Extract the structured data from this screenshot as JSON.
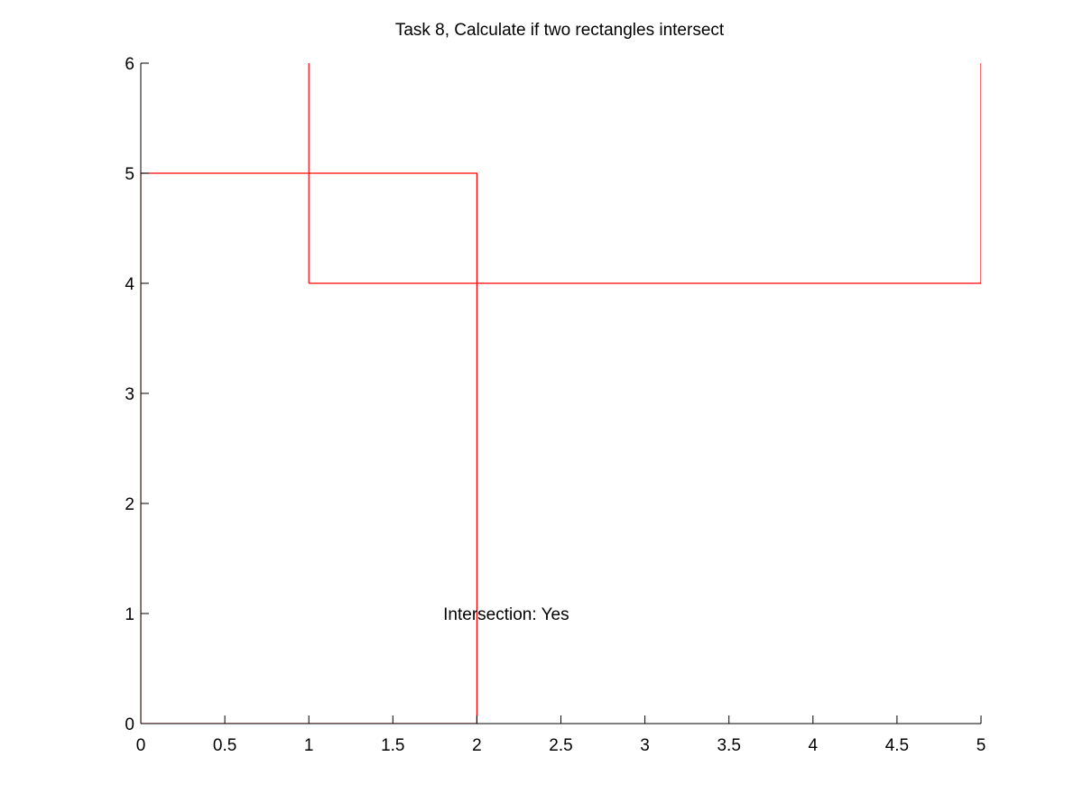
{
  "chart_data": {
    "type": "line",
    "title": "Task 8, Calculate if two rectangles intersect",
    "xlabel": "",
    "ylabel": "",
    "xlim": [
      0,
      5
    ],
    "ylim": [
      0,
      6
    ],
    "x_ticks": [
      0,
      0.5,
      1,
      1.5,
      2,
      2.5,
      3,
      3.5,
      4,
      4.5,
      5
    ],
    "x_tick_labels": [
      "0",
      "0.5",
      "1",
      "1.5",
      "2",
      "2.5",
      "3",
      "3.5",
      "4",
      "4.5",
      "5"
    ],
    "y_ticks": [
      0,
      1,
      2,
      3,
      4,
      5,
      6
    ],
    "y_tick_labels": [
      "0",
      "1",
      "2",
      "3",
      "4",
      "5",
      "6"
    ],
    "grid": false,
    "legend": "none",
    "series": [
      {
        "color": "#ff0000",
        "x": [
          0,
          2,
          2,
          0,
          0
        ],
        "y": [
          0,
          0,
          5,
          5,
          0
        ]
      },
      {
        "color": "#ff0000",
        "x": [
          1,
          5,
          5,
          1,
          1
        ],
        "y": [
          4,
          4,
          8,
          8,
          4
        ]
      }
    ],
    "annotations": [
      {
        "text": "Intersection: Yes",
        "x": 1.8,
        "y": 1
      }
    ]
  }
}
